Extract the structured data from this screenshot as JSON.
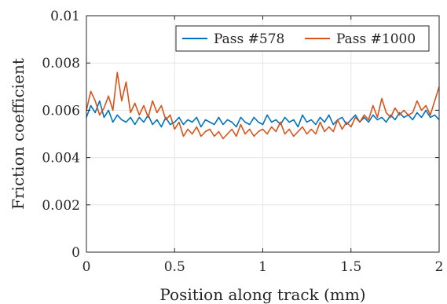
{
  "chart_data": {
    "type": "line",
    "xlabel": "Position along track (mm)",
    "ylabel": "Friction coefficient",
    "xlim": [
      0,
      2
    ],
    "ylim": [
      0,
      0.01
    ],
    "x_ticks": [
      "0",
      "0.5",
      "1",
      "1.5",
      "2"
    ],
    "y_ticks": [
      "0",
      "0.002",
      "0.004",
      "0.006",
      "0.008",
      "0.01"
    ],
    "grid": true,
    "legend_position": "top-right",
    "series": [
      {
        "name": "Pass #578",
        "color": "#0072BD",
        "x": [
          0,
          0.025,
          0.05,
          0.075,
          0.1,
          0.125,
          0.15,
          0.175,
          0.2,
          0.225,
          0.25,
          0.275,
          0.3,
          0.325,
          0.35,
          0.375,
          0.4,
          0.425,
          0.45,
          0.475,
          0.5,
          0.525,
          0.55,
          0.575,
          0.6,
          0.625,
          0.65,
          0.675,
          0.7,
          0.725,
          0.75,
          0.775,
          0.8,
          0.825,
          0.85,
          0.875,
          0.9,
          0.925,
          0.95,
          0.975,
          1,
          1.025,
          1.05,
          1.075,
          1.1,
          1.125,
          1.15,
          1.175,
          1.2,
          1.225,
          1.25,
          1.275,
          1.3,
          1.325,
          1.35,
          1.375,
          1.4,
          1.425,
          1.45,
          1.475,
          1.5,
          1.525,
          1.55,
          1.575,
          1.6,
          1.625,
          1.65,
          1.675,
          1.7,
          1.725,
          1.75,
          1.775,
          1.8,
          1.825,
          1.85,
          1.875,
          1.9,
          1.925,
          1.95,
          1.975,
          2
        ],
        "y": [
          0.0057,
          0.0062,
          0.0059,
          0.0064,
          0.0057,
          0.006,
          0.0055,
          0.0058,
          0.0056,
          0.0055,
          0.0057,
          0.0054,
          0.0057,
          0.0055,
          0.0058,
          0.0054,
          0.0056,
          0.0053,
          0.0057,
          0.0054,
          0.0055,
          0.0057,
          0.0054,
          0.0056,
          0.0055,
          0.0057,
          0.0053,
          0.0056,
          0.0055,
          0.0054,
          0.0057,
          0.0054,
          0.0056,
          0.0055,
          0.0053,
          0.0057,
          0.0055,
          0.0054,
          0.0057,
          0.0055,
          0.0054,
          0.0058,
          0.0055,
          0.0056,
          0.0054,
          0.0057,
          0.0055,
          0.0056,
          0.0053,
          0.0058,
          0.0055,
          0.0056,
          0.0054,
          0.0057,
          0.0055,
          0.0058,
          0.0054,
          0.0056,
          0.0057,
          0.0054,
          0.0056,
          0.0058,
          0.0055,
          0.0057,
          0.0055,
          0.0058,
          0.0056,
          0.0057,
          0.0055,
          0.0058,
          0.0056,
          0.0059,
          0.0057,
          0.0058,
          0.0056,
          0.0059,
          0.0057,
          0.006,
          0.0057,
          0.0058,
          0.0056
        ]
      },
      {
        "name": "Pass #1000",
        "color": "#D95319",
        "x": [
          0,
          0.025,
          0.05,
          0.075,
          0.1,
          0.125,
          0.15,
          0.175,
          0.2,
          0.225,
          0.25,
          0.275,
          0.3,
          0.325,
          0.35,
          0.375,
          0.4,
          0.425,
          0.45,
          0.475,
          0.5,
          0.525,
          0.55,
          0.575,
          0.6,
          0.625,
          0.65,
          0.675,
          0.7,
          0.725,
          0.75,
          0.775,
          0.8,
          0.825,
          0.85,
          0.875,
          0.9,
          0.925,
          0.95,
          0.975,
          1,
          1.025,
          1.05,
          1.075,
          1.1,
          1.125,
          1.15,
          1.175,
          1.2,
          1.225,
          1.25,
          1.275,
          1.3,
          1.325,
          1.35,
          1.375,
          1.4,
          1.425,
          1.45,
          1.475,
          1.5,
          1.525,
          1.55,
          1.575,
          1.6,
          1.625,
          1.65,
          1.675,
          1.7,
          1.725,
          1.75,
          1.775,
          1.8,
          1.825,
          1.85,
          1.875,
          1.9,
          1.925,
          1.95,
          1.975,
          2
        ],
        "y": [
          0.006,
          0.0068,
          0.0064,
          0.0058,
          0.0061,
          0.0066,
          0.006,
          0.0076,
          0.0064,
          0.0072,
          0.0059,
          0.0063,
          0.0058,
          0.0062,
          0.0057,
          0.0064,
          0.0059,
          0.0062,
          0.0056,
          0.0058,
          0.0052,
          0.0055,
          0.0049,
          0.0052,
          0.005,
          0.0053,
          0.0049,
          0.0051,
          0.0052,
          0.0049,
          0.0051,
          0.0048,
          0.005,
          0.0052,
          0.0049,
          0.0054,
          0.005,
          0.0052,
          0.0049,
          0.0051,
          0.0052,
          0.005,
          0.0053,
          0.0051,
          0.0055,
          0.005,
          0.0052,
          0.0049,
          0.0051,
          0.0053,
          0.005,
          0.0052,
          0.005,
          0.0055,
          0.0051,
          0.0053,
          0.0051,
          0.0056,
          0.0052,
          0.0055,
          0.0053,
          0.0057,
          0.0055,
          0.0058,
          0.0056,
          0.0062,
          0.0057,
          0.0065,
          0.0059,
          0.0057,
          0.0061,
          0.0058,
          0.006,
          0.0058,
          0.0059,
          0.0064,
          0.006,
          0.0062,
          0.0058,
          0.0064,
          0.007
        ]
      }
    ]
  }
}
